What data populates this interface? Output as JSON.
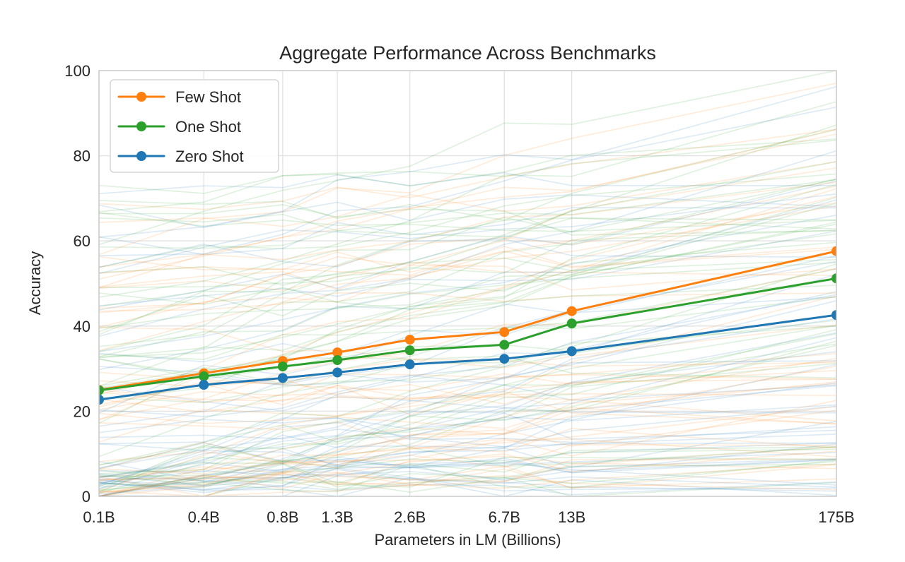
{
  "chart_data": {
    "type": "line",
    "title": "Aggregate Performance Across Benchmarks",
    "xlabel": "Parameters in LM (Billions)",
    "ylabel": "Accuracy",
    "x_scale": "log",
    "x_tick_labels": [
      "0.1B",
      "0.4B",
      "0.8B",
      "1.3B",
      "2.6B",
      "6.7B",
      "13B",
      "175B"
    ],
    "x_values_billions": [
      0.125,
      0.35,
      0.76,
      1.3,
      2.65,
      6.7,
      13,
      175
    ],
    "y_ticks": [
      0,
      20,
      40,
      60,
      80,
      100
    ],
    "ylim": [
      0,
      100
    ],
    "xlim_billions": [
      0.125,
      175
    ],
    "grid": true,
    "legend_position": "upper-left",
    "series": [
      {
        "name": "Few Shot",
        "color": "#ff7f0e",
        "values": [
          25.0,
          28.9,
          31.8,
          33.8,
          36.8,
          38.6,
          43.5,
          57.6
        ]
      },
      {
        "name": "One Shot",
        "color": "#2ca02c",
        "values": [
          24.9,
          28.2,
          30.5,
          32.0,
          34.3,
          35.6,
          40.6,
          51.2
        ]
      },
      {
        "name": "Zero Shot",
        "color": "#1f77b4",
        "values": [
          22.7,
          26.2,
          27.8,
          29.1,
          31.0,
          32.3,
          34.1,
          42.6
        ]
      }
    ],
    "background_series": {
      "description": "faint per-benchmark accuracy curves, one set per shot setting",
      "per_color_count": 48,
      "alpha": 0.15,
      "stroke_width": 1.7,
      "seed": 11
    },
    "style": {
      "grid_color": "#e2e2e2",
      "spine_color": "#cccccc",
      "text_color": "#262626",
      "background": "#ffffff",
      "legend_border": "#d5d5d5",
      "line_width": 3,
      "marker_radius": 7
    }
  }
}
